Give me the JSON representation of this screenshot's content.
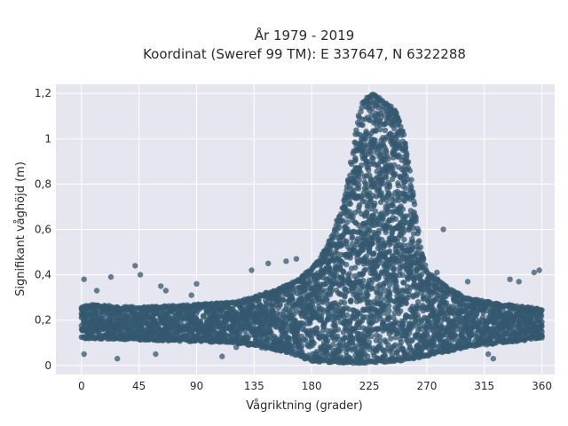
{
  "chart_data": {
    "type": "scatter",
    "title": "År 1979 - 2019",
    "subtitle": "Koordinat (Sweref 99 TM): E 337647, N 6322288",
    "xlabel": "Vågriktning (grader)",
    "ylabel": "Signifikant våghöjd (m)",
    "xlim": [
      -20,
      370
    ],
    "ylim": [
      -0.04,
      1.24
    ],
    "x_ticks": [
      0,
      45,
      90,
      135,
      180,
      225,
      270,
      315,
      360
    ],
    "x_tick_labels": [
      "0",
      "45",
      "90",
      "135",
      "180",
      "225",
      "270",
      "315",
      "360"
    ],
    "y_ticks": [
      0,
      0.2,
      0.4,
      0.6,
      0.8,
      1.0,
      1.2
    ],
    "y_tick_labels": [
      "0",
      "0,2",
      "0,4",
      "0,6",
      "0,8",
      "1",
      "1,2"
    ],
    "grid": true,
    "legend": "none",
    "colors": {
      "marker": "#34586f",
      "plot_bg": "#e5e6ef",
      "grid": "#ffffff"
    },
    "series": [
      {
        "upper_envelope": {
          "x": [
            0,
            10,
            30,
            60,
            90,
            120,
            150,
            170,
            185,
            195,
            203,
            210,
            215,
            220,
            228,
            238,
            246,
            252,
            258,
            264,
            270,
            285,
            300,
            330,
            360
          ],
          "y": [
            0.26,
            0.27,
            0.26,
            0.26,
            0.27,
            0.28,
            0.33,
            0.38,
            0.46,
            0.56,
            0.68,
            0.85,
            1.05,
            1.17,
            1.2,
            1.16,
            1.12,
            1.02,
            0.82,
            0.55,
            0.42,
            0.35,
            0.3,
            0.27,
            0.25
          ]
        },
        "lower_envelope": {
          "x": [
            0,
            60,
            120,
            160,
            180,
            200,
            225,
            250,
            270,
            300,
            360
          ],
          "y": [
            0.12,
            0.11,
            0.1,
            0.06,
            0.02,
            0.01,
            0.01,
            0.02,
            0.04,
            0.08,
            0.12
          ]
        },
        "outliers": [
          {
            "x": 2,
            "y": 0.38
          },
          {
            "x": 2,
            "y": 0.05
          },
          {
            "x": 12,
            "y": 0.33
          },
          {
            "x": 23,
            "y": 0.39
          },
          {
            "x": 42,
            "y": 0.44
          },
          {
            "x": 46,
            "y": 0.4
          },
          {
            "x": 62,
            "y": 0.35
          },
          {
            "x": 66,
            "y": 0.33
          },
          {
            "x": 86,
            "y": 0.31
          },
          {
            "x": 90,
            "y": 0.36
          },
          {
            "x": 121,
            "y": 0.08
          },
          {
            "x": 133,
            "y": 0.42
          },
          {
            "x": 146,
            "y": 0.45
          },
          {
            "x": 160,
            "y": 0.46
          },
          {
            "x": 168,
            "y": 0.47
          },
          {
            "x": 283,
            "y": 0.6
          },
          {
            "x": 278,
            "y": 0.41
          },
          {
            "x": 302,
            "y": 0.37
          },
          {
            "x": 335,
            "y": 0.38
          },
          {
            "x": 342,
            "y": 0.37
          },
          {
            "x": 354,
            "y": 0.41
          },
          {
            "x": 358,
            "y": 0.42
          },
          {
            "x": 28,
            "y": 0.03
          },
          {
            "x": 58,
            "y": 0.05
          },
          {
            "x": 110,
            "y": 0.04
          },
          {
            "x": 318,
            "y": 0.05
          },
          {
            "x": 322,
            "y": 0.03
          }
        ]
      }
    ]
  }
}
